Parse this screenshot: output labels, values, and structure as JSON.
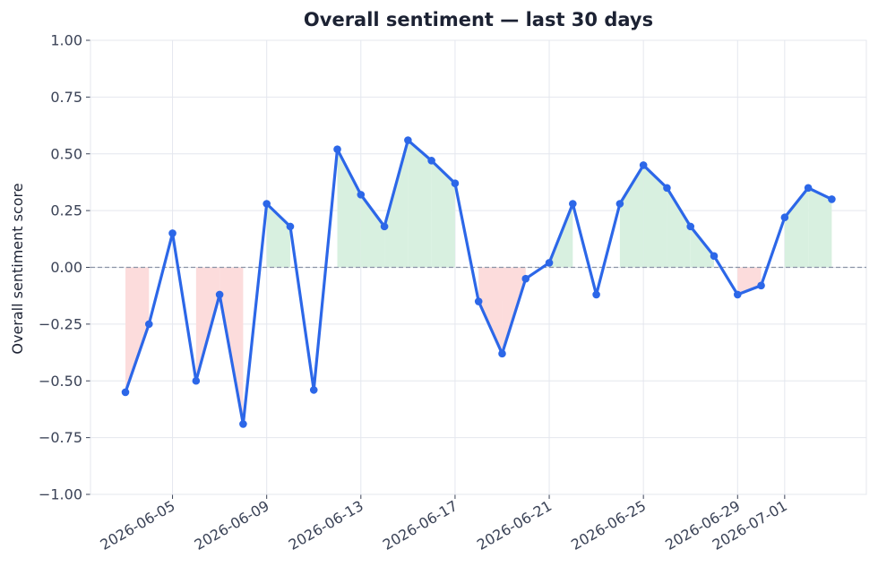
{
  "chart_data": {
    "type": "line",
    "title": "Overall sentiment — last 30 days",
    "xlabel": "",
    "ylabel": "Overall sentiment score",
    "ylim": [
      -1.0,
      1.0
    ],
    "y_ticks": [
      "1.00",
      "0.75",
      "0.50",
      "0.25",
      "0.00",
      "−0.25",
      "−0.50",
      "−0.75",
      "−1.00"
    ],
    "x_tick_labels": [
      "2026-06-05",
      "2026-06-09",
      "2026-06-13",
      "2026-06-17",
      "2026-06-21",
      "2026-06-25",
      "2026-06-29",
      "2026-07-01"
    ],
    "grid": true,
    "zero_line": true,
    "x": [
      "2026-06-03",
      "2026-06-04",
      "2026-06-05",
      "2026-06-06",
      "2026-06-07",
      "2026-06-08",
      "2026-06-09",
      "2026-06-10",
      "2026-06-11",
      "2026-06-12",
      "2026-06-13",
      "2026-06-14",
      "2026-06-15",
      "2026-06-16",
      "2026-06-17",
      "2026-06-18",
      "2026-06-19",
      "2026-06-20",
      "2026-06-21",
      "2026-06-22",
      "2026-06-23",
      "2026-06-24",
      "2026-06-25",
      "2026-06-26",
      "2026-06-27",
      "2026-06-28",
      "2026-06-29",
      "2026-06-30",
      "2026-07-01",
      "2026-07-02",
      "2026-07-03"
    ],
    "values": [
      -0.55,
      -0.25,
      0.15,
      -0.5,
      -0.12,
      -0.69,
      0.28,
      0.18,
      -0.54,
      0.52,
      0.32,
      0.18,
      0.56,
      0.47,
      0.37,
      -0.15,
      -0.38,
      -0.05,
      0.02,
      0.28,
      -0.12,
      0.28,
      0.45,
      0.35,
      0.18,
      0.05,
      -0.12,
      -0.08,
      0.22,
      0.35,
      0.3
    ],
    "colors": {
      "line": "#2c67e8",
      "positive_fill": "#d8f0e0",
      "negative_fill": "#fcdcdc",
      "grid": "#e4e7ee",
      "zero_line": "#8a93a6"
    }
  }
}
